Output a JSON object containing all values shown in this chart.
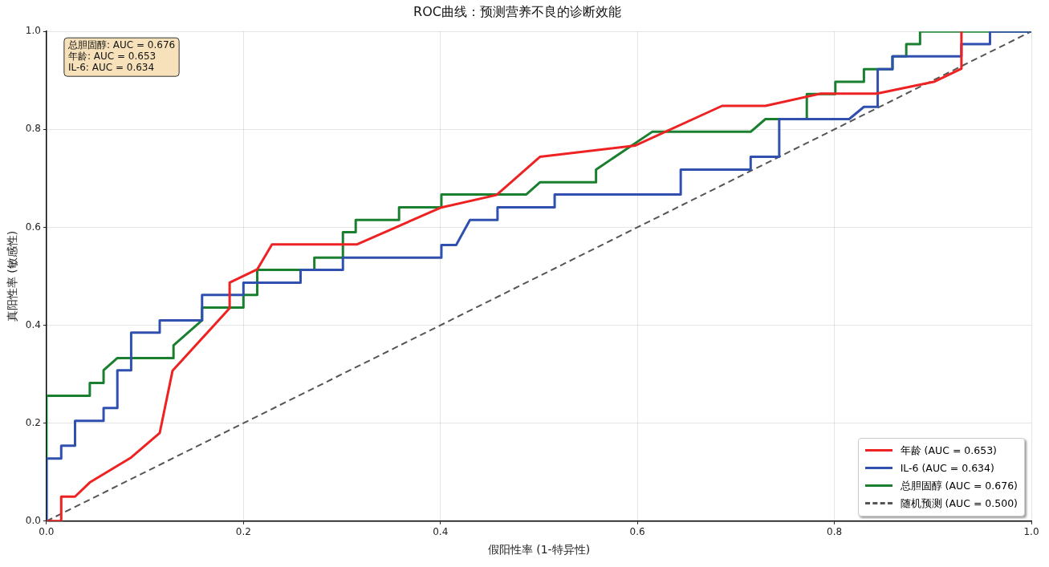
{
  "chart_data": {
    "type": "line",
    "title": "ROC曲线：预测营养不良的诊断效能",
    "xlabel": "假阳性率 (1-特异性)",
    "ylabel": "真阳性率 (敏感性)",
    "xlim": [
      0,
      1
    ],
    "ylim": [
      0,
      1
    ],
    "xticks": [
      {
        "value": 0,
        "label": "0.0"
      },
      {
        "value": 0.2,
        "label": "0.2"
      },
      {
        "value": 0.4,
        "label": "0.4"
      },
      {
        "value": 0.6,
        "label": "0.6"
      },
      {
        "value": 0.8,
        "label": "0.8"
      },
      {
        "value": 1,
        "label": "1.0"
      }
    ],
    "yticks": [
      {
        "value": 0,
        "label": "0.0"
      },
      {
        "value": 0.2,
        "label": "0.2"
      },
      {
        "value": 0.4,
        "label": "0.4"
      },
      {
        "value": 0.6,
        "label": "0.6"
      },
      {
        "value": 0.8,
        "label": "0.8"
      },
      {
        "value": 1,
        "label": "1.0"
      }
    ],
    "grid": true,
    "legend": "bottom right",
    "marker": "none",
    "annotations": [
      "总胆固醇: AUC = 0.676",
      "年龄: AUC = 0.653",
      "IL-6: AUC = 0.634"
    ],
    "series": [
      {
        "name": "年龄 (AUC = 0.653)",
        "color": "#ee2222",
        "line_style": "solid",
        "x": [
          0,
          0.015,
          0.015,
          0.029,
          0.044,
          0.086,
          0.115,
          0.128,
          0.186,
          0.186,
          0.214,
          0.229,
          0.315,
          0.4,
          0.457,
          0.501,
          0.598,
          0.686,
          0.73,
          0.786,
          0.843,
          0.901,
          0.929,
          0.929
        ],
        "values": [
          0,
          0,
          0.05,
          0.05,
          0.079,
          0.13,
          0.18,
          0.307,
          0.435,
          0.487,
          0.514,
          0.565,
          0.565,
          0.64,
          0.666,
          0.744,
          0.767,
          0.848,
          0.848,
          0.873,
          0.873,
          0.897,
          0.924,
          1
        ]
      },
      {
        "name": "IL-6 (AUC = 0.634)",
        "color": "#3050b0",
        "line_style": "solid",
        "x": [
          0,
          0,
          0.015,
          0.015,
          0.029,
          0.029,
          0.058,
          0.058,
          0.072,
          0.072,
          0.086,
          0.086,
          0.115,
          0.115,
          0.158,
          0.158,
          0.2,
          0.2,
          0.258,
          0.258,
          0.301,
          0.301,
          0.401,
          0.401,
          0.416,
          0.43,
          0.458,
          0.458,
          0.516,
          0.516,
          0.644,
          0.644,
          0.715,
          0.715,
          0.744,
          0.744,
          0.815,
          0.83,
          0.844,
          0.844,
          0.859,
          0.859,
          0.929,
          0.929,
          0.958,
          0.958,
          1
        ],
        "values": [
          0,
          0.128,
          0.128,
          0.154,
          0.154,
          0.205,
          0.205,
          0.231,
          0.231,
          0.308,
          0.308,
          0.385,
          0.385,
          0.41,
          0.41,
          0.462,
          0.462,
          0.487,
          0.487,
          0.513,
          0.513,
          0.538,
          0.538,
          0.564,
          0.564,
          0.615,
          0.615,
          0.641,
          0.641,
          0.667,
          0.667,
          0.718,
          0.718,
          0.744,
          0.744,
          0.821,
          0.821,
          0.846,
          0.846,
          0.923,
          0.923,
          0.949,
          0.949,
          0.974,
          0.974,
          1,
          1
        ]
      },
      {
        "name": "总胆固醇 (AUC = 0.676)",
        "color": "#1a8030",
        "line_style": "solid",
        "x": [
          0,
          0,
          0.044,
          0.044,
          0.058,
          0.058,
          0.072,
          0.129,
          0.129,
          0.158,
          0.158,
          0.2,
          0.2,
          0.214,
          0.214,
          0.272,
          0.272,
          0.301,
          0.301,
          0.314,
          0.314,
          0.358,
          0.358,
          0.401,
          0.401,
          0.487,
          0.501,
          0.558,
          0.558,
          0.615,
          0.715,
          0.73,
          0.772,
          0.772,
          0.801,
          0.801,
          0.83,
          0.83,
          0.859,
          0.859,
          0.873,
          0.873,
          0.887,
          0.887,
          1
        ],
        "values": [
          0,
          0.256,
          0.256,
          0.282,
          0.282,
          0.308,
          0.333,
          0.333,
          0.359,
          0.41,
          0.436,
          0.436,
          0.462,
          0.462,
          0.513,
          0.513,
          0.538,
          0.538,
          0.59,
          0.59,
          0.615,
          0.615,
          0.641,
          0.641,
          0.667,
          0.667,
          0.692,
          0.692,
          0.718,
          0.795,
          0.795,
          0.821,
          0.821,
          0.872,
          0.872,
          0.897,
          0.897,
          0.923,
          0.923,
          0.949,
          0.949,
          0.974,
          0.974,
          1,
          1
        ]
      },
      {
        "name": "随机预测 (AUC = 0.500)",
        "color": "#555555",
        "line_style": "dashed",
        "x": [
          0,
          1
        ],
        "values": [
          0,
          1
        ]
      }
    ]
  }
}
